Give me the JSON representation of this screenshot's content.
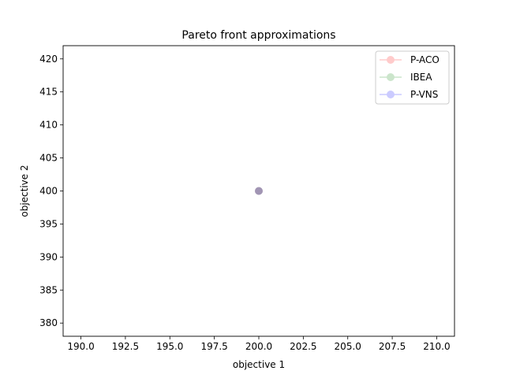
{
  "chart_data": {
    "type": "scatter",
    "title": "Pareto front approximations",
    "xlabel": "objective 1",
    "ylabel": "objective 2",
    "xlim": [
      189,
      211
    ],
    "ylim": [
      378,
      422
    ],
    "xticks": [
      190.0,
      192.5,
      195.0,
      197.5,
      200.0,
      202.5,
      205.0,
      207.5,
      210.0
    ],
    "xtick_labels": [
      "190.0",
      "192.5",
      "195.0",
      "197.5",
      "200.0",
      "202.5",
      "205.0",
      "207.5",
      "210.0"
    ],
    "yticks": [
      380,
      385,
      390,
      395,
      400,
      405,
      410,
      415,
      420
    ],
    "ytick_labels": [
      "380",
      "385",
      "390",
      "395",
      "400",
      "405",
      "410",
      "415",
      "420"
    ],
    "grid": false,
    "legend_position": "top-right",
    "series": [
      {
        "name": "P-ACO",
        "color": "#ff0000",
        "alpha": 0.2,
        "x": [
          200
        ],
        "y": [
          400
        ]
      },
      {
        "name": "IBEA",
        "color": "#008000",
        "alpha": 0.2,
        "x": [
          200
        ],
        "y": [
          400
        ]
      },
      {
        "name": "P-VNS",
        "color": "#0000ff",
        "alpha": 0.2,
        "x": [
          200
        ],
        "y": [
          400
        ]
      }
    ]
  }
}
